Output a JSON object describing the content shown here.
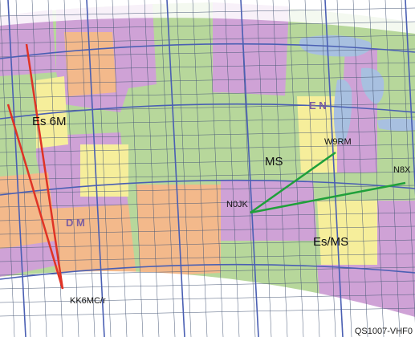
{
  "map": {
    "propagation_labels": [
      "Es 6M",
      "MS",
      "Es/MS"
    ],
    "stations": [
      "KK6MC/r",
      "N0JK",
      "W9RM",
      "N8X"
    ],
    "region_watermarks": [
      "E N",
      "D M"
    ],
    "paths": [
      {
        "from": "KK6MC/r",
        "to": "north-1",
        "mode": "Es 6M",
        "color": "#e03325"
      },
      {
        "from": "KK6MC/r",
        "to": "north-2",
        "mode": "Es 6M",
        "color": "#e03325"
      },
      {
        "from": "N0JK",
        "to": "W9RM",
        "mode": "MS",
        "color": "#1fa03a"
      },
      {
        "from": "N0JK",
        "to": "N8X",
        "mode": "Es/MS",
        "color": "#1fa03a"
      }
    ],
    "colors": {
      "grid_line": "#4a5fb3",
      "lake": "#a8c0e0",
      "state_fills": [
        "#cfa2d6",
        "#b7d79b",
        "#f3b98b",
        "#f6ee9b"
      ]
    }
  },
  "caption": "QS1007-VHF0"
}
